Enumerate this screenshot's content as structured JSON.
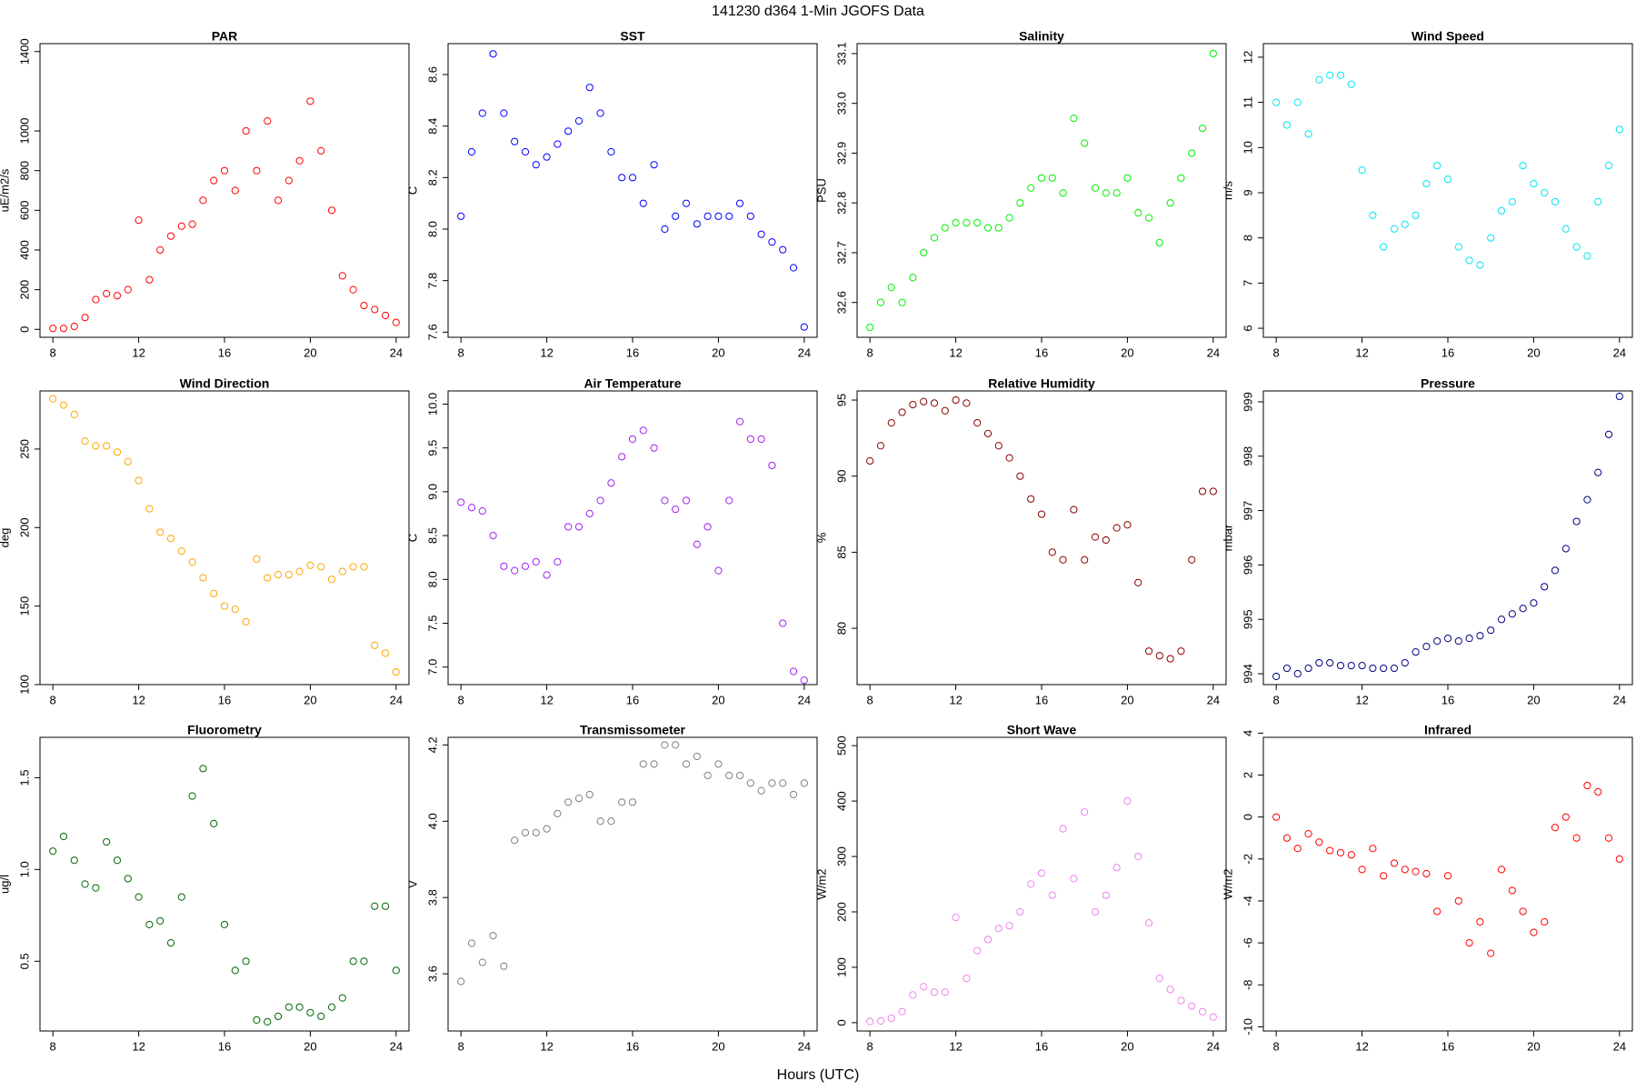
{
  "title": "141230   d364   1-Min  JGOFS Data",
  "xlabel": "Hours (UTC)",
  "chart_data": [
    {
      "type": "scatter",
      "title": "PAR",
      "ylabel": "uE/m2/s",
      "color": "#ff0000",
      "x": [
        8,
        8.5,
        9,
        9.5,
        10,
        10.5,
        11,
        11.5,
        12,
        12.5,
        13,
        13.5,
        14,
        14.5,
        15,
        15.5,
        16,
        16.5,
        17,
        17.5,
        18,
        18.5,
        19,
        19.5,
        20,
        20.5,
        21,
        21.5,
        22,
        22.5,
        23,
        23.5,
        24
      ],
      "values": [
        5,
        5,
        15,
        60,
        150,
        180,
        170,
        200,
        550,
        250,
        400,
        470,
        520,
        530,
        650,
        750,
        800,
        700,
        1000,
        800,
        1050,
        650,
        750,
        850,
        1150,
        900,
        600,
        270,
        200,
        120,
        100,
        70,
        35
      ],
      "xlim": [
        7.4,
        24.6
      ],
      "ylim": [
        -40,
        1440
      ],
      "xticks": [
        8,
        12,
        16,
        20,
        24
      ],
      "yticks": [
        0,
        200,
        400,
        600,
        800,
        1000,
        1400
      ]
    },
    {
      "type": "scatter",
      "title": "SST",
      "ylabel": "C",
      "color": "#0000ff",
      "x": [
        8,
        8.5,
        9,
        9.5,
        10,
        10.5,
        11,
        11.5,
        12,
        12.5,
        13,
        13.5,
        14,
        14.5,
        15,
        15.5,
        16,
        16.5,
        17,
        17.5,
        18,
        18.5,
        19,
        19.5,
        20,
        20.5,
        21,
        21.5,
        22,
        22.5,
        23,
        23.5,
        24
      ],
      "values": [
        8.05,
        8.3,
        8.45,
        8.68,
        8.45,
        8.34,
        8.3,
        8.25,
        8.28,
        8.33,
        8.38,
        8.42,
        8.55,
        8.45,
        8.3,
        8.2,
        8.2,
        8.1,
        8.25,
        8.0,
        8.05,
        8.1,
        8.02,
        8.05,
        8.05,
        8.05,
        8.1,
        8.05,
        7.98,
        7.95,
        7.92,
        7.85,
        7.62
      ],
      "xlim": [
        7.4,
        24.6
      ],
      "ylim": [
        7.58,
        8.72
      ],
      "xticks": [
        8,
        12,
        16,
        20,
        24
      ],
      "yticks": [
        7.6,
        7.8,
        {
          "value": 8,
          "label": "8.0"
        },
        8.2,
        8.4,
        8.6
      ]
    },
    {
      "type": "scatter",
      "title": "Salinity",
      "ylabel": "PSU",
      "color": "#00ee00",
      "x": [
        8,
        8.5,
        9,
        9.5,
        10,
        10.5,
        11,
        11.5,
        12,
        12.5,
        13,
        13.5,
        14,
        14.5,
        15,
        15.5,
        16,
        16.5,
        17,
        17.5,
        18,
        18.5,
        19,
        19.5,
        20,
        20.5,
        21,
        21.5,
        22,
        22.5,
        23,
        23.5,
        24
      ],
      "values": [
        32.55,
        32.6,
        32.63,
        32.6,
        32.65,
        32.7,
        32.73,
        32.75,
        32.76,
        32.76,
        32.76,
        32.75,
        32.75,
        32.77,
        32.8,
        32.83,
        32.85,
        32.85,
        32.82,
        32.97,
        32.92,
        32.83,
        32.82,
        32.82,
        32.85,
        32.78,
        32.77,
        32.72,
        32.8,
        32.85,
        32.9,
        32.95,
        33.1
      ],
      "xlim": [
        7.4,
        24.6
      ],
      "ylim": [
        32.53,
        33.12
      ],
      "xticks": [
        8,
        12,
        16,
        20,
        24
      ],
      "yticks": [
        32.6,
        32.7,
        32.8,
        32.9,
        {
          "value": 33,
          "label": "33.0"
        },
        33.1
      ]
    },
    {
      "type": "scatter",
      "title": "Wind Speed",
      "ylabel": "m/s",
      "color": "#00e5ee",
      "x": [
        8,
        8.5,
        9,
        9.5,
        10,
        10.5,
        11,
        11.5,
        12,
        12.5,
        13,
        13.5,
        14,
        14.5,
        15,
        15.5,
        16,
        16.5,
        17,
        17.5,
        18,
        18.5,
        19,
        19.5,
        20,
        20.5,
        21,
        21.5,
        22,
        22.5,
        23,
        23.5,
        24
      ],
      "values": [
        11,
        10.5,
        11,
        10.3,
        11.5,
        11.6,
        11.6,
        11.4,
        9.5,
        8.5,
        7.8,
        8.2,
        8.3,
        8.5,
        9.2,
        9.6,
        9.3,
        7.8,
        7.5,
        7.4,
        8.0,
        8.6,
        8.8,
        9.6,
        9.2,
        9.0,
        8.8,
        8.2,
        7.8,
        7.6,
        8.8,
        9.6,
        10.4
      ],
      "xlim": [
        7.4,
        24.6
      ],
      "ylim": [
        5.8,
        12.3
      ],
      "xticks": [
        8,
        12,
        16,
        20,
        24
      ],
      "yticks": [
        6,
        7,
        8,
        9,
        10,
        11,
        12
      ]
    },
    {
      "type": "scatter",
      "title": "Wind Direction",
      "ylabel": "deg",
      "color": "#ffa500",
      "x": [
        8,
        8.5,
        9,
        9.5,
        10,
        10.5,
        11,
        11.5,
        12,
        12.5,
        13,
        13.5,
        14,
        14.5,
        15,
        15.5,
        16,
        16.5,
        17,
        17.5,
        18,
        18.5,
        19,
        19.5,
        20,
        20.5,
        21,
        21.5,
        22,
        22.5,
        23,
        23.5,
        24
      ],
      "values": [
        282,
        278,
        272,
        255,
        252,
        252,
        248,
        242,
        230,
        212,
        197,
        193,
        185,
        178,
        168,
        158,
        150,
        148,
        140,
        180,
        168,
        170,
        170,
        172,
        176,
        175,
        167,
        172,
        175,
        175,
        125,
        120,
        108
      ],
      "xlim": [
        7.4,
        24.6
      ],
      "ylim": [
        100,
        287
      ],
      "xticks": [
        8,
        12,
        16,
        20,
        24
      ],
      "yticks": [
        100,
        150,
        200,
        250
      ]
    },
    {
      "type": "scatter",
      "title": "Air Temperature",
      "ylabel": "C",
      "color": "#a020f0",
      "x": [
        8,
        8.5,
        9,
        9.5,
        10,
        10.5,
        11,
        11.5,
        12,
        12.5,
        13,
        13.5,
        14,
        14.5,
        15,
        15.5,
        16,
        16.5,
        17,
        17.5,
        18,
        18.5,
        19,
        19.5,
        20,
        20.5,
        21,
        21.5,
        22,
        22.5,
        23,
        23.5,
        24
      ],
      "values": [
        8.88,
        8.82,
        8.78,
        8.5,
        8.15,
        8.1,
        8.15,
        8.2,
        8.05,
        8.2,
        8.6,
        8.6,
        8.75,
        8.9,
        9.1,
        9.4,
        9.6,
        9.7,
        9.5,
        8.9,
        8.8,
        8.9,
        8.4,
        8.6,
        8.1,
        8.9,
        9.8,
        9.6,
        9.6,
        9.3,
        7.5,
        6.95,
        6.85
      ],
      "xlim": [
        7.4,
        24.6
      ],
      "ylim": [
        6.8,
        10.15
      ],
      "xticks": [
        8,
        12,
        16,
        20,
        24
      ],
      "yticks": [
        {
          "value": 7,
          "label": "7.0"
        },
        7.5,
        {
          "value": 8,
          "label": "8.0"
        },
        8.5,
        {
          "value": 9,
          "label": "9.0"
        },
        9.5,
        {
          "value": 10,
          "label": "10.0"
        }
      ]
    },
    {
      "type": "scatter",
      "title": "Relative Humidity",
      "ylabel": "%",
      "color": "#8b0000",
      "x": [
        8,
        8.5,
        9,
        9.5,
        10,
        10.5,
        11,
        11.5,
        12,
        12.5,
        13,
        13.5,
        14,
        14.5,
        15,
        15.5,
        16,
        16.5,
        17,
        17.5,
        18,
        18.5,
        19,
        19.5,
        20,
        20.5,
        21,
        21.5,
        22,
        22.5,
        23,
        23.5,
        24
      ],
      "values": [
        91,
        92,
        93.5,
        94.2,
        94.7,
        94.9,
        94.8,
        94.3,
        95,
        94.8,
        93.5,
        92.8,
        92,
        91.2,
        90,
        88.5,
        87.5,
        85,
        84.5,
        87.8,
        84.5,
        86,
        85.8,
        86.6,
        86.8,
        83,
        78.5,
        78.2,
        78,
        78.5,
        84.5,
        89,
        89
      ],
      "xlim": [
        7.4,
        24.6
      ],
      "ylim": [
        76.3,
        95.6
      ],
      "xticks": [
        8,
        12,
        16,
        20,
        24
      ],
      "yticks": [
        80,
        85,
        90,
        95
      ]
    },
    {
      "type": "scatter",
      "title": "Pressure",
      "ylabel": "mbar",
      "color": "#000080",
      "x": [
        8,
        8.5,
        9,
        9.5,
        10,
        10.5,
        11,
        11.5,
        12,
        12.5,
        13,
        13.5,
        14,
        14.5,
        15,
        15.5,
        16,
        16.5,
        17,
        17.5,
        18,
        18.5,
        19,
        19.5,
        20,
        20.5,
        21,
        21.5,
        22,
        22.5,
        23,
        23.5,
        24
      ],
      "values": [
        993.95,
        994.1,
        994.0,
        994.1,
        994.2,
        994.2,
        994.15,
        994.15,
        994.15,
        994.1,
        994.1,
        994.1,
        994.2,
        994.4,
        994.5,
        994.6,
        994.65,
        994.6,
        994.65,
        994.7,
        994.8,
        995.0,
        995.1,
        995.2,
        995.3,
        995.6,
        995.9,
        996.3,
        996.8,
        997.2,
        997.7,
        998.4,
        999.1
      ],
      "xlim": [
        7.4,
        24.6
      ],
      "ylim": [
        993.8,
        999.2
      ],
      "xticks": [
        8,
        12,
        16,
        20,
        24
      ],
      "yticks": [
        994,
        995,
        996,
        997,
        998,
        999
      ]
    },
    {
      "type": "scatter",
      "title": "Fluorometry",
      "ylabel": "ug/l",
      "color": "#006400",
      "x": [
        8,
        8.5,
        9,
        9.5,
        10,
        10.5,
        11,
        11.5,
        12,
        12.5,
        13,
        13.5,
        14,
        14.5,
        15,
        15.5,
        16,
        16.5,
        17,
        17.5,
        18,
        18.5,
        19,
        19.5,
        20,
        20.5,
        21,
        21.5,
        22,
        22.5,
        23,
        23.5,
        24
      ],
      "values": [
        1.1,
        1.18,
        1.05,
        0.92,
        0.9,
        1.15,
        1.05,
        0.95,
        0.85,
        0.7,
        0.72,
        0.6,
        0.85,
        1.4,
        1.55,
        1.25,
        0.7,
        0.45,
        0.5,
        0.18,
        0.17,
        0.2,
        0.25,
        0.25,
        0.22,
        0.2,
        0.25,
        0.3,
        0.5,
        0.5,
        0.8,
        0.8,
        0.45
      ],
      "xlim": [
        7.4,
        24.6
      ],
      "ylim": [
        0.12,
        1.72
      ],
      "xticks": [
        8,
        12,
        16,
        20,
        24
      ],
      "yticks": [
        0.5,
        {
          "value": 1,
          "label": "1.0"
        },
        1.5
      ]
    },
    {
      "type": "scatter",
      "title": "Transmissometer",
      "ylabel": "V",
      "color": "#808080",
      "x": [
        8,
        8.5,
        9,
        9.5,
        10,
        10.5,
        11,
        11.5,
        12,
        12.5,
        13,
        13.5,
        14,
        14.5,
        15,
        15.5,
        16,
        16.5,
        17,
        17.5,
        18,
        18.5,
        19,
        19.5,
        20,
        20.5,
        21,
        21.5,
        22,
        22.5,
        23,
        23.5,
        24
      ],
      "values": [
        3.58,
        3.68,
        3.63,
        3.7,
        3.62,
        3.95,
        3.97,
        3.97,
        3.98,
        4.02,
        4.05,
        4.06,
        4.07,
        4.0,
        4.0,
        4.05,
        4.05,
        4.15,
        4.15,
        4.2,
        4.2,
        4.15,
        4.17,
        4.12,
        4.15,
        4.12,
        4.12,
        4.1,
        4.08,
        4.1,
        4.1,
        4.07,
        4.1
      ],
      "xlim": [
        7.4,
        24.6
      ],
      "ylim": [
        3.45,
        4.22
      ],
      "xticks": [
        8,
        12,
        16,
        20,
        24
      ],
      "yticks": [
        3.6,
        3.8,
        {
          "value": 4,
          "label": "4.0"
        },
        4.2
      ]
    },
    {
      "type": "scatter",
      "title": "Short Wave",
      "ylabel": "W/m2",
      "color": "#ee82ee",
      "x": [
        8,
        8.5,
        9,
        9.5,
        10,
        10.5,
        11,
        11.5,
        12,
        12.5,
        13,
        13.5,
        14,
        14.5,
        15,
        15.5,
        16,
        16.5,
        17,
        17.5,
        18,
        18.5,
        19,
        19.5,
        20,
        20.5,
        21,
        21.5,
        22,
        22.5,
        23,
        23.5,
        24
      ],
      "values": [
        2,
        3,
        8,
        20,
        50,
        65,
        55,
        55,
        190,
        80,
        130,
        150,
        170,
        175,
        200,
        250,
        270,
        230,
        350,
        260,
        380,
        200,
        230,
        280,
        400,
        300,
        180,
        80,
        60,
        40,
        30,
        20,
        10
      ],
      "xlim": [
        7.4,
        24.6
      ],
      "ylim": [
        -15,
        515
      ],
      "xticks": [
        8,
        12,
        16,
        20,
        24
      ],
      "yticks": [
        0,
        100,
        200,
        300,
        400,
        500
      ]
    },
    {
      "type": "scatter",
      "title": "Infrared",
      "ylabel": "W/m2",
      "color": "#ff0000",
      "x": [
        8,
        8.5,
        9,
        9.5,
        10,
        10.5,
        11,
        11.5,
        12,
        12.5,
        13,
        13.5,
        14,
        14.5,
        15,
        15.5,
        16,
        16.5,
        17,
        17.5,
        18,
        18.5,
        19,
        19.5,
        20,
        20.5,
        21,
        21.5,
        22,
        22.5,
        23,
        23.5,
        24
      ],
      "values": [
        0,
        -1,
        -1.5,
        -0.8,
        -1.2,
        -1.6,
        -1.7,
        -1.8,
        -2.5,
        -1.5,
        -2.8,
        -2.2,
        -2.5,
        -2.6,
        -2.7,
        -4.5,
        -2.8,
        -4,
        -6,
        -5,
        -6.5,
        -2.5,
        -3.5,
        -4.5,
        -5.5,
        -5,
        -0.5,
        0,
        -1,
        1.5,
        1.2,
        -1,
        -2
      ],
      "xlim": [
        7.4,
        24.6
      ],
      "ylim": [
        -10.2,
        3.8
      ],
      "xticks": [
        8,
        12,
        16,
        20,
        24
      ],
      "yticks": [
        -10,
        -8,
        -6,
        -4,
        -2,
        0,
        2,
        4
      ]
    }
  ]
}
